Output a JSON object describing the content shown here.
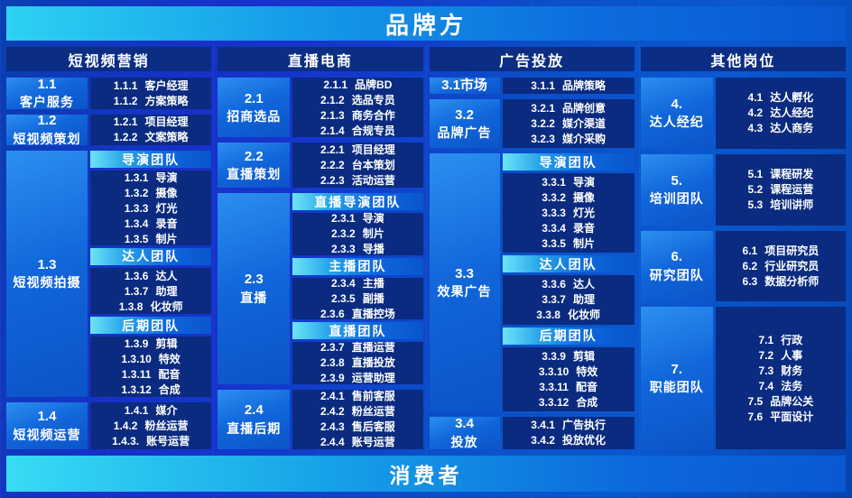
{
  "top_banner": "品牌方",
  "bottom_banner": "消费者",
  "colors": {
    "accent_cyan": "#38DCF4",
    "deep_navy": "#0A2B80",
    "cell_blue": "#1166DA",
    "background_blue": "#1535CC"
  },
  "columns": [
    {
      "header": "短视频营销",
      "groups": [
        {
          "num": "1.1",
          "name": "客户服务",
          "items": [
            {
              "num": "1.1.1",
              "label": "客户经理"
            },
            {
              "num": "1.1.2",
              "label": "方案策略"
            }
          ]
        },
        {
          "num": "1.2",
          "name": "短视频策划",
          "items": [
            {
              "num": "1.2.1",
              "label": "项目经理"
            },
            {
              "num": "1.2.2",
              "label": "文案策略"
            }
          ]
        },
        {
          "num": "1.3",
          "name": "短视频拍摄",
          "teams": [
            {
              "title": "导演团队",
              "items": [
                {
                  "num": "1.3.1",
                  "label": "导演"
                },
                {
                  "num": "1.3.2",
                  "label": "摄像"
                },
                {
                  "num": "1.3.3",
                  "label": "灯光"
                },
                {
                  "num": "1.3.4",
                  "label": "录音"
                },
                {
                  "num": "1.3.5",
                  "label": "制片"
                }
              ]
            },
            {
              "title": "达人团队",
              "items": [
                {
                  "num": "1.3.6",
                  "label": "达人"
                },
                {
                  "num": "1.3.7",
                  "label": "助理"
                },
                {
                  "num": "1.3.8",
                  "label": "化妆师"
                }
              ]
            },
            {
              "title": "后期团队",
              "items": [
                {
                  "num": "1.3.9",
                  "label": "剪辑"
                },
                {
                  "num": "1.3.10",
                  "label": "特效"
                },
                {
                  "num": "1.3.11",
                  "label": "配音"
                },
                {
                  "num": "1.3.12",
                  "label": "合成"
                }
              ]
            }
          ]
        },
        {
          "num": "1.4",
          "name": "短视频运营",
          "items": [
            {
              "num": "1.4.1",
              "label": "媒介"
            },
            {
              "num": "1.4.2",
              "label": "粉丝运营"
            },
            {
              "num": "1.4.3.",
              "label": "账号运营"
            }
          ]
        }
      ]
    },
    {
      "header": "直播电商",
      "groups": [
        {
          "num": "2.1",
          "name": "招商选品",
          "items": [
            {
              "num": "2.1.1",
              "label": "品牌BD"
            },
            {
              "num": "2.1.2",
              "label": "选品专员"
            },
            {
              "num": "2.1.3",
              "label": "商务合作"
            },
            {
              "num": "2.1.4",
              "label": "合规专员"
            }
          ]
        },
        {
          "num": "2.2",
          "name": "直播策划",
          "items": [
            {
              "num": "2.2.1",
              "label": "项目经理"
            },
            {
              "num": "2.2.2",
              "label": "台本策划"
            },
            {
              "num": "2.2.3",
              "label": "活动运营"
            }
          ]
        },
        {
          "num": "2.3",
          "name": "直播",
          "teams": [
            {
              "title": "直播导演团队",
              "items": [
                {
                  "num": "2.3.1",
                  "label": "导演"
                },
                {
                  "num": "2.3.2",
                  "label": "制片"
                },
                {
                  "num": "2.3.3",
                  "label": "导播"
                }
              ]
            },
            {
              "title": "主播团队",
              "items": [
                {
                  "num": "2.3.4",
                  "label": "主播"
                },
                {
                  "num": "2.3.5",
                  "label": "副播"
                },
                {
                  "num": "2.3.6",
                  "label": "直播控场"
                }
              ]
            },
            {
              "title": "直播团队",
              "items": [
                {
                  "num": "2.3.7",
                  "label": "直播运营"
                },
                {
                  "num": "2.3.8",
                  "label": "直播投放"
                },
                {
                  "num": "2.3.9",
                  "label": "运营助理"
                }
              ]
            }
          ]
        },
        {
          "num": "2.4",
          "name": "直播后期",
          "items": [
            {
              "num": "2.4.1",
              "label": "售前客服"
            },
            {
              "num": "2.4.2",
              "label": "粉丝运营"
            },
            {
              "num": "2.4.3",
              "label": "售后客服"
            },
            {
              "num": "2.4.4",
              "label": "账号运营"
            }
          ]
        }
      ]
    },
    {
      "header": "广告投放",
      "groups": [
        {
          "num": "3.1",
          "name": "市场",
          "oneline": true,
          "items": [
            {
              "num": "3.1.1",
              "label": "品牌策略"
            }
          ]
        },
        {
          "num": "3.2",
          "name": "品牌广告",
          "items": [
            {
              "num": "3.2.1",
              "label": "品牌创意"
            },
            {
              "num": "3.2.2",
              "label": "媒介渠道"
            },
            {
              "num": "3.2.3",
              "label": "媒介采购"
            }
          ]
        },
        {
          "num": "3.3",
          "name": "效果广告",
          "teams": [
            {
              "title": "导演团队",
              "items": [
                {
                  "num": "3.3.1",
                  "label": "导演"
                },
                {
                  "num": "3.3.2",
                  "label": "摄像"
                },
                {
                  "num": "3.3.3",
                  "label": "灯光"
                },
                {
                  "num": "3.3.4",
                  "label": "录音"
                },
                {
                  "num": "3.3.5",
                  "label": "制片"
                }
              ]
            },
            {
              "title": "达人团队",
              "items": [
                {
                  "num": "3.3.6",
                  "label": "达人"
                },
                {
                  "num": "3.3.7",
                  "label": "助理"
                },
                {
                  "num": "3.3.8",
                  "label": "化妆师"
                }
              ]
            },
            {
              "title": "后期团队",
              "items": [
                {
                  "num": "3.3.9",
                  "label": "剪辑"
                },
                {
                  "num": "3.3.10",
                  "label": "特效"
                },
                {
                  "num": "3.3.11",
                  "label": "配音"
                },
                {
                  "num": "3.3.12",
                  "label": "合成"
                }
              ]
            }
          ]
        },
        {
          "num": "3.4",
          "name": "投放",
          "items": [
            {
              "num": "3.4.1",
              "label": "广告执行"
            },
            {
              "num": "3.4.2",
              "label": "投放优化"
            }
          ]
        }
      ]
    },
    {
      "header": "其他岗位",
      "groups": [
        {
          "num": "4.",
          "name": "达人经纪",
          "items": [
            {
              "num": "4.1",
              "label": "达人孵化"
            },
            {
              "num": "4.2",
              "label": "达人经纪"
            },
            {
              "num": "4.3",
              "label": "达人商务"
            }
          ]
        },
        {
          "num": "5.",
          "name": "培训团队",
          "items": [
            {
              "num": "5.1",
              "label": "课程研发"
            },
            {
              "num": "5.2",
              "label": "课程运营"
            },
            {
              "num": "5.3",
              "label": "培训讲师"
            }
          ]
        },
        {
          "num": "6.",
          "name": "研究团队",
          "items": [
            {
              "num": "6.1",
              "label": "项目研究员"
            },
            {
              "num": "6.2",
              "label": "行业研究员"
            },
            {
              "num": "6.3",
              "label": "数据分析师"
            }
          ]
        },
        {
          "num": "7.",
          "name": "职能团队",
          "items": [
            {
              "num": "7.1",
              "label": "行政"
            },
            {
              "num": "7.2",
              "label": "人事"
            },
            {
              "num": "7.3",
              "label": "财务"
            },
            {
              "num": "7.4",
              "label": "法务"
            },
            {
              "num": "7.5",
              "label": "品牌公关"
            },
            {
              "num": "7.6",
              "label": "平面设计"
            }
          ]
        }
      ]
    }
  ]
}
